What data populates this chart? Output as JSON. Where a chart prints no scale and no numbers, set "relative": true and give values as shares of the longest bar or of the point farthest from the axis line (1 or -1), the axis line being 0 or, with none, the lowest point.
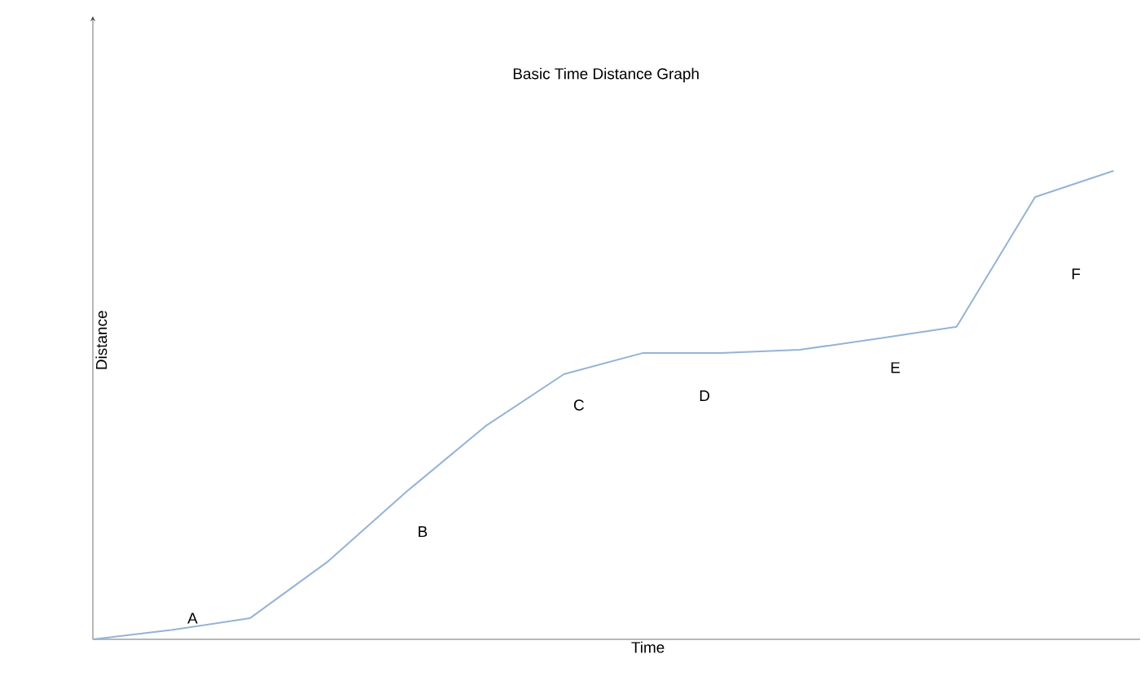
{
  "chart_data": {
    "type": "line",
    "title": "Basic Time Distance Graph",
    "xlabel": "Time",
    "ylabel": "Distance",
    "relative": true,
    "categories": [
      null,
      null,
      null,
      null,
      null,
      null,
      null,
      null,
      null,
      null,
      null,
      null,
      null,
      null
    ],
    "series": [
      {
        "color": "#95b3d7",
        "values": [
          0,
          0.02,
          0.045,
          0.167,
          0.316,
          0.455,
          0.566,
          0.611,
          0.611,
          0.618,
          0.642,
          0.667,
          0.944,
          1
        ]
      }
    ],
    "annotations": [
      "A",
      "B",
      "C",
      "D",
      "E",
      "F"
    ]
  }
}
